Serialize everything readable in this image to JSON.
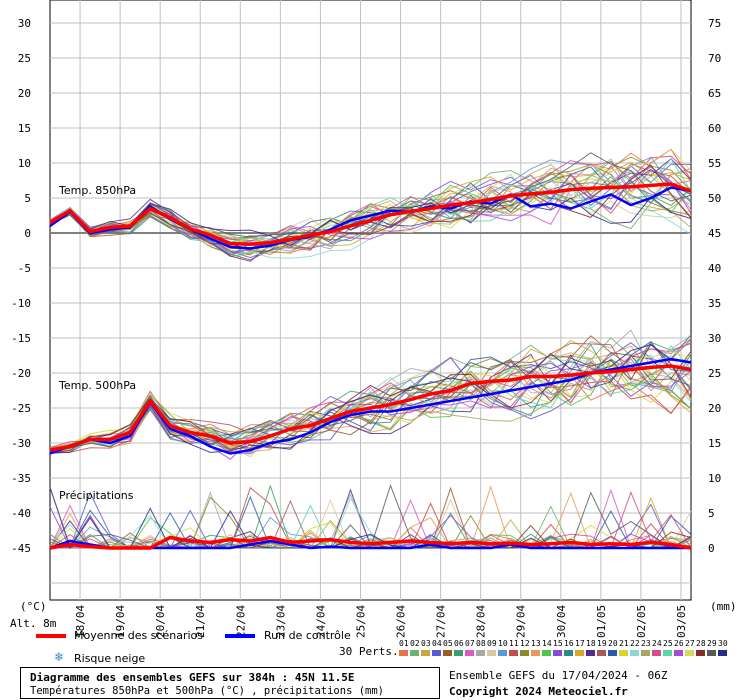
{
  "chart_data": {
    "type": "line",
    "title": "Diagramme des ensembles GEFS sur 384h : 45N 11.5E",
    "subtitle": "Températures 850hPa et 500hPa (°C) , précipitations (mm)",
    "left_axis": {
      "label": "(°C)",
      "range": [
        -50,
        30
      ],
      "ticks": [
        30,
        25,
        20,
        15,
        10,
        5,
        0,
        -5,
        -10,
        -15,
        -20,
        -25,
        -30,
        -35,
        -40,
        -45
      ]
    },
    "right_axis": {
      "label": "(mm)",
      "range": [
        -5,
        75
      ],
      "ticks": [
        75,
        70,
        65,
        60,
        55,
        50,
        45,
        40,
        35,
        30,
        25,
        20,
        15,
        10,
        5,
        0
      ]
    },
    "x_axis": {
      "range": [
        "17/04 06Z",
        "03/05 06Z"
      ],
      "tick_labels": [
        "18/04",
        "19/04",
        "20/04",
        "21/04",
        "22/04",
        "23/04",
        "24/04",
        "25/04",
        "26/04",
        "27/04",
        "28/04",
        "29/04",
        "30/04",
        "01/05",
        "02/05",
        "03/05"
      ]
    },
    "grid": true,
    "altitude": "Alt. 8m",
    "panels": [
      {
        "name": "Temp. 850hPa",
        "unit": "°C"
      },
      {
        "name": "Temp. 500hPa",
        "unit": "°C"
      },
      {
        "name": "Précipitations",
        "unit": "mm"
      }
    ],
    "series": [
      {
        "name": "Moyenne des scénarios",
        "color": "#ff0000",
        "t850": [
          1.5,
          3.2,
          0.2,
          0.8,
          1.0,
          3.5,
          2.2,
          0.6,
          -0.3,
          -1.5,
          -1.6,
          -1.4,
          -0.9,
          -0.3,
          0.2,
          1.0,
          1.8,
          2.6,
          3.1,
          3.5,
          4.0,
          4.3,
          4.8,
          5.3,
          5.6,
          5.8,
          6.2,
          6.4,
          6.5,
          6.6,
          6.8,
          7.0,
          6.0
        ],
        "t500": [
          -31,
          -30.5,
          -29.5,
          -29.5,
          -28.5,
          -24.0,
          -27.5,
          -28.5,
          -29.0,
          -30.0,
          -29.8,
          -29.0,
          -28.0,
          -27.5,
          -26.5,
          -25.5,
          -25.0,
          -24.5,
          -23.8,
          -23.0,
          -22.5,
          -21.5,
          -21.2,
          -21.0,
          -20.5,
          -20.5,
          -20.3,
          -20.0,
          -19.8,
          -19.5,
          -19.2,
          -19.0,
          -19.5
        ],
        "precip": [
          0,
          0.5,
          0.2,
          0,
          0,
          0,
          1.5,
          1.0,
          0.8,
          1.2,
          1.0,
          1.5,
          0.8,
          1.0,
          1.2,
          0.8,
          0.6,
          0.8,
          1.0,
          0.8,
          0.6,
          0.8,
          0.6,
          0.7,
          0.5,
          0.6,
          0.8,
          0.5,
          0.6,
          0.5,
          0.8,
          0.5,
          0
        ]
      },
      {
        "name": "Run de contrôle",
        "color": "#0000ff",
        "t850": [
          1.0,
          3.0,
          0.0,
          0.5,
          0.8,
          3.8,
          2.0,
          0.5,
          -0.8,
          -2.0,
          -2.2,
          -1.8,
          -1.0,
          -0.5,
          0.5,
          1.8,
          2.5,
          3.2,
          3.0,
          3.8,
          3.5,
          4.5,
          4.2,
          5.5,
          3.8,
          4.2,
          3.5,
          4.5,
          5.5,
          4.0,
          5.0,
          6.5,
          6.0
        ],
        "t500": [
          -31.5,
          -30.5,
          -29.5,
          -30.0,
          -29.0,
          -24.2,
          -28.0,
          -29.0,
          -30.5,
          -31.5,
          -31.0,
          -30.0,
          -29.5,
          -28.5,
          -27.0,
          -26.0,
          -25.5,
          -25.5,
          -25.0,
          -24.5,
          -24.0,
          -23.5,
          -23.0,
          -22.5,
          -22.0,
          -21.5,
          -21.0,
          -20.0,
          -19.5,
          -19.0,
          -18.5,
          -18.0,
          -18.5
        ],
        "precip": [
          0,
          1.0,
          0.5,
          0,
          0,
          0,
          0,
          0,
          0,
          0,
          0.5,
          1.0,
          0.5,
          0,
          0.2,
          0,
          0,
          0,
          0,
          0.5,
          0,
          0,
          0,
          0.5,
          0,
          0,
          0,
          0,
          0,
          0,
          0,
          0,
          0
        ]
      }
    ]
  },
  "legend": {
    "mean_label": "Moyenne des scénarios",
    "control_label": "Run de contrôle",
    "snow_label": "Risque neige",
    "perts_label": "30 Perts.",
    "pert_numbers": [
      "01",
      "02",
      "03",
      "04",
      "05",
      "06",
      "07",
      "08",
      "09",
      "10",
      "11",
      "12",
      "13",
      "14",
      "15",
      "16",
      "17",
      "18",
      "19",
      "20",
      "21",
      "22",
      "23",
      "24",
      "25",
      "26",
      "27",
      "28",
      "29",
      "30"
    ],
    "pert_colors": [
      "#e8734a",
      "#6db36d",
      "#c8a83c",
      "#5a5ad8",
      "#9a5a2a",
      "#3aa06a",
      "#d85ac8",
      "#a8a8a8",
      "#d8c89a",
      "#5a9ad8",
      "#c84a4a",
      "#8a8a2a",
      "#e89a5a",
      "#4ac84a",
      "#8a4ad8",
      "#2a8a8a",
      "#d8a82a",
      "#5a2a8a",
      "#a85a5a",
      "#2a5aa8",
      "#d8d82a",
      "#8ad8d8",
      "#a8a85a",
      "#d84a8a",
      "#5ad8a8",
      "#a84ad8",
      "#d8d85a",
      "#8a2a2a",
      "#5a5a5a",
      "#2a2a8a"
    ]
  },
  "info": {
    "ensemble": "Ensemble GEFS du 17/04/2024 - 06Z",
    "copyright": "Copyright 2024 Meteociel.fr"
  }
}
